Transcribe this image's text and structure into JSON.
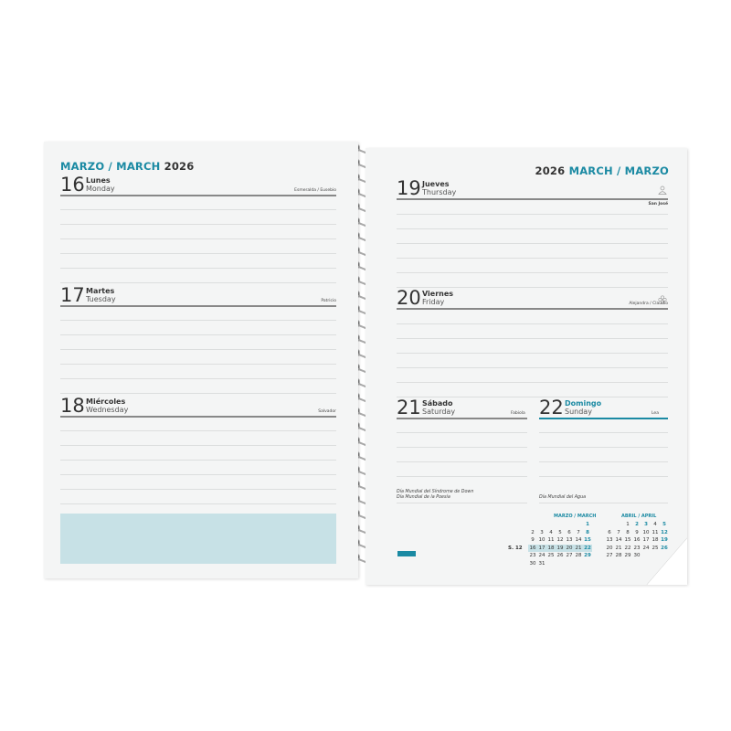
{
  "left_page": {
    "title_es": "MARZO",
    "title_sep": "/",
    "title_en": "MARCH",
    "year": "2026",
    "days": [
      {
        "num": "16",
        "es": "Lunes",
        "en": "Monday",
        "saint": "Esmeralda / Eusebio"
      },
      {
        "num": "17",
        "es": "Martes",
        "en": "Tuesday",
        "saint": "Patricio"
      },
      {
        "num": "18",
        "es": "Miércoles",
        "en": "Wednesday",
        "saint": "Salvador"
      }
    ],
    "notes_box_color": "#c7e1e6"
  },
  "right_page": {
    "year": "2026",
    "title_en": "MARCH",
    "title_sep": "/",
    "title_es": "MARZO",
    "days": [
      {
        "num": "19",
        "es": "Jueves",
        "en": "Thursday",
        "saint": "San José",
        "icon": "person-icon"
      },
      {
        "num": "20",
        "es": "Viernes",
        "en": "Friday",
        "saint": "Alejandra / Claudio",
        "icon": "flower-icon"
      },
      {
        "num": "21",
        "es": "Sábado",
        "en": "Saturday",
        "saint": "Fabiola",
        "notes": [
          "Día Mundial del Síndrome de Down",
          "Día Mundial de la Poesía"
        ]
      },
      {
        "num": "22",
        "es": "Domingo",
        "en": "Sunday",
        "saint": "Lea",
        "notes": [
          "Día Mundial del Agua"
        ],
        "sunday": true
      }
    ],
    "mini_calendars": [
      {
        "title": "MARZO / MARCH",
        "week_label": "S. 12",
        "highlight_week": 4,
        "weeks": [
          [
            "",
            "",
            "",
            "",
            "",
            "",
            "1"
          ],
          [
            "2",
            "3",
            "4",
            "5",
            "6",
            "7",
            "8"
          ],
          [
            "9",
            "10",
            "11",
            "12",
            "13",
            "14",
            "15"
          ],
          [
            "16",
            "17",
            "18",
            "19",
            "20",
            "21",
            "22"
          ],
          [
            "23",
            "24",
            "25",
            "26",
            "27",
            "28",
            "29"
          ],
          [
            "30",
            "31",
            "",
            "",
            "",
            "",
            ""
          ]
        ],
        "bold": [
          "1",
          "8",
          "15",
          "22",
          "29"
        ]
      },
      {
        "title": "ABRIL / APRIL",
        "weeks": [
          [
            "",
            "",
            "1",
            "2",
            "3",
            "4",
            "5"
          ],
          [
            "6",
            "7",
            "8",
            "9",
            "10",
            "11",
            "12"
          ],
          [
            "13",
            "14",
            "15",
            "16",
            "17",
            "18",
            "19"
          ],
          [
            "20",
            "21",
            "22",
            "23",
            "24",
            "25",
            "26"
          ],
          [
            "27",
            "28",
            "29",
            "30",
            "",
            "",
            ""
          ]
        ],
        "bold": [
          "2",
          "3",
          "5",
          "12",
          "19",
          "26"
        ]
      }
    ]
  },
  "colors": {
    "accent": "#1b8aa3",
    "highlight": "#c7e1e6",
    "logo": "#1b8aa3"
  }
}
